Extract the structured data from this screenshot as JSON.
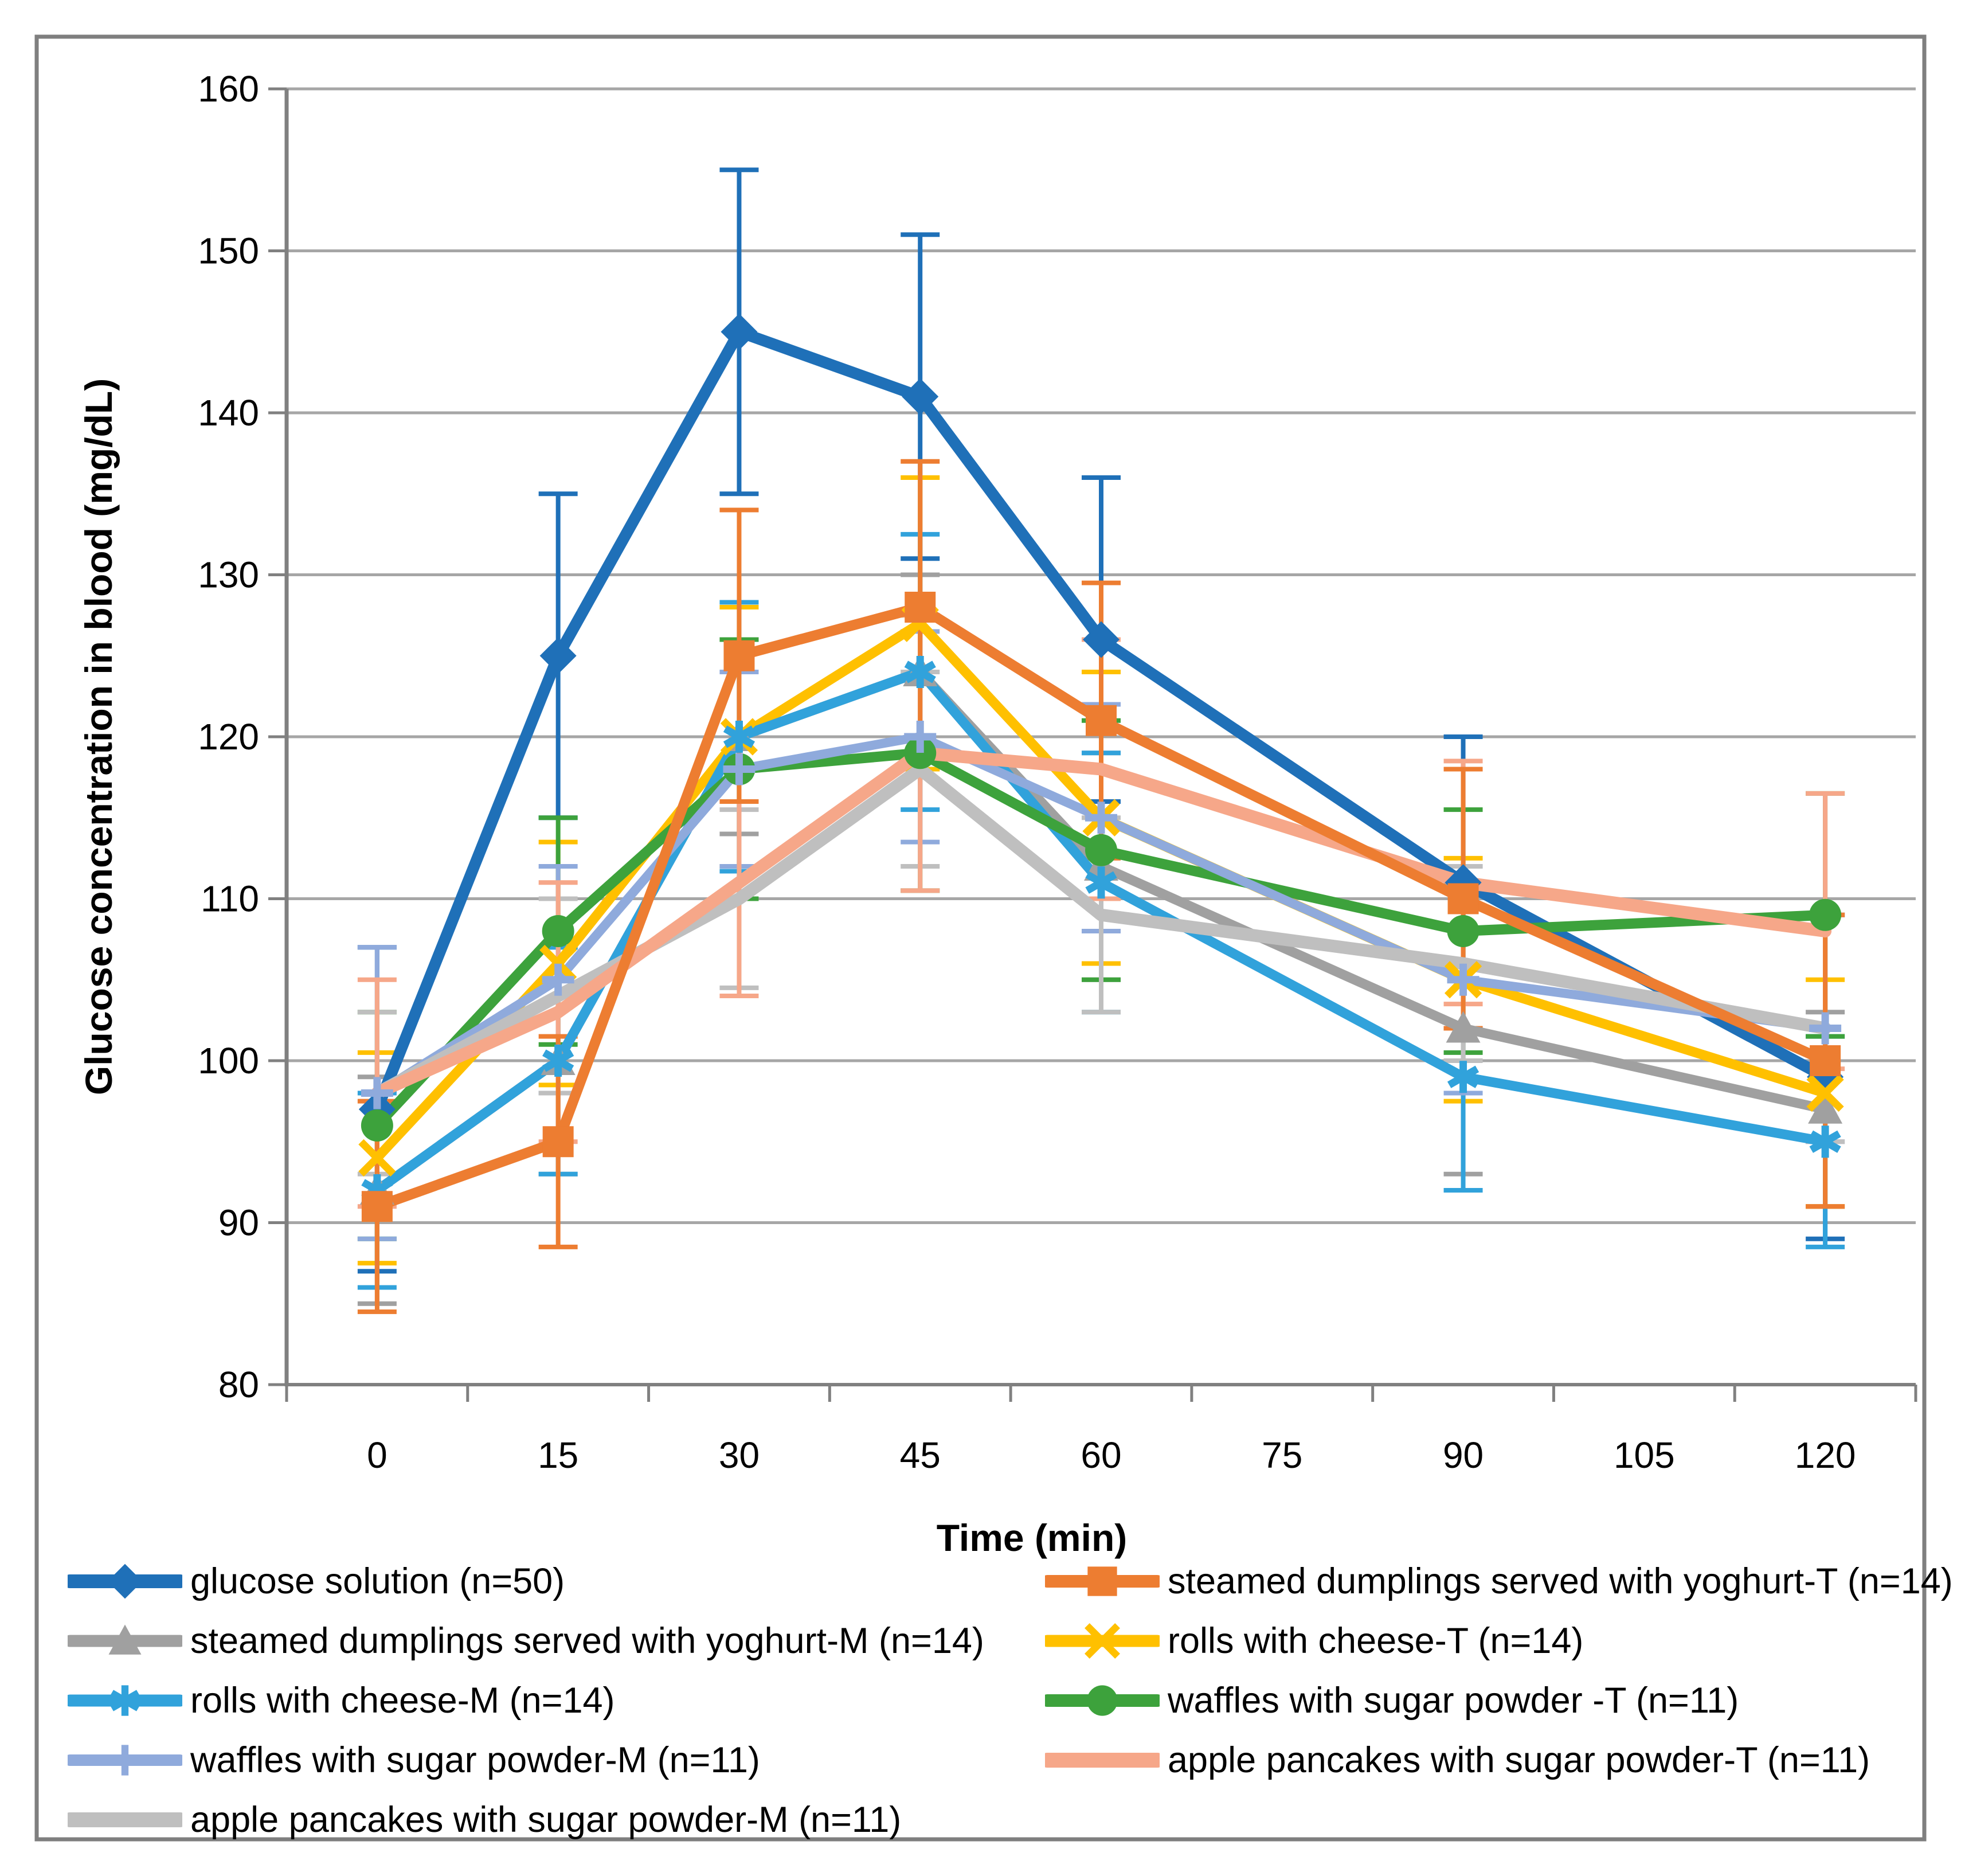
{
  "chart_data": {
    "type": "line",
    "x": [
      0,
      15,
      30,
      45,
      60,
      90,
      120
    ],
    "x_axis_ticks": [
      0,
      15,
      30,
      45,
      60,
      75,
      90,
      105,
      120
    ],
    "y_axis_ticks": [
      80,
      90,
      100,
      110,
      120,
      130,
      140,
      150,
      160
    ],
    "ylim": [
      80,
      160
    ],
    "xlabel": "Time (min)",
    "ylabel": "Glucose concentration in blood (mg/dL)",
    "grid": "horizontal",
    "legend_position": "bottom",
    "error_bars": true,
    "series": [
      {
        "label": "glucose solution (n=50)",
        "color": "#1F70B8",
        "marker": "diamond",
        "line_weight": 20,
        "values": [
          97,
          125,
          145,
          141,
          126,
          111,
          99
        ],
        "errors": [
          10,
          10,
          10,
          10,
          10,
          9,
          10
        ]
      },
      {
        "label": "steamed dumplings served with yoghurt-T (n=14)",
        "color": "#ED7D31",
        "marker": "square",
        "line_weight": 18,
        "values": [
          91,
          95,
          125,
          128,
          121,
          110,
          100
        ],
        "errors": [
          6.5,
          6.5,
          9,
          9,
          8.5,
          8,
          9
        ]
      },
      {
        "label": "steamed dumplings served with yoghurt-M (n=14)",
        "color": "#A0A0A0",
        "marker": "triangle",
        "line_weight": 17,
        "values": [
          92,
          100,
          120,
          124,
          112,
          102,
          97
        ],
        "errors": [
          7,
          7,
          6,
          6,
          7,
          9,
          6
        ]
      },
      {
        "label": "rolls with cheese-T (n=14)",
        "color": "#FFC000",
        "marker": "x",
        "line_weight": 17,
        "values": [
          94,
          106,
          120,
          127,
          115,
          105,
          98
        ],
        "errors": [
          6.5,
          7.5,
          8,
          9,
          9,
          7.5,
          7
        ]
      },
      {
        "label": "rolls with cheese-M (n=14)",
        "color": "#31A2DB",
        "marker": "asterisk",
        "line_weight": 17,
        "values": [
          92,
          100,
          120,
          124,
          111,
          99,
          95
        ],
        "errors": [
          6,
          7,
          8.3,
          8.5,
          8,
          7,
          6.5
        ]
      },
      {
        "label": "waffles with sugar powder -T (n=11)",
        "color": "#3DA23C",
        "marker": "circle",
        "line_weight": 18,
        "values": [
          96,
          108,
          118,
          119,
          113,
          108,
          109
        ],
        "errors": [
          7,
          7,
          8,
          8.5,
          8,
          7.5,
          7.5
        ]
      },
      {
        "label": "waffles with sugar powder-M (n=11)",
        "color": "#8FAADC",
        "marker": "plus",
        "line_weight": 16,
        "values": [
          98,
          105,
          118,
          120,
          115,
          105,
          102
        ],
        "errors": [
          9,
          7,
          6,
          6.5,
          7,
          7,
          7
        ]
      },
      {
        "label": "apple pancakes with sugar powder-T (n=11)",
        "color": "#F6A789",
        "marker": "none",
        "line_weight": 22,
        "values": [
          98,
          103,
          111,
          119,
          118,
          111,
          108
        ],
        "errors": [
          7,
          8,
          7,
          8.5,
          8,
          7.5,
          8.5
        ]
      },
      {
        "label": "apple pancakes with sugar powder-M (n=11)",
        "color": "#BFBFBF",
        "marker": "none",
        "line_weight": 22,
        "values": [
          98,
          104,
          110,
          118,
          109,
          106,
          102
        ],
        "errors": [
          5,
          6,
          5.5,
          6,
          6,
          6,
          7
        ]
      }
    ],
    "style": {
      "background": "#FFFFFF",
      "gridline_color": "#A6A6A6",
      "axis_color": "#808080",
      "border_color": "#7F7F7F",
      "text_color": "#000000"
    }
  }
}
